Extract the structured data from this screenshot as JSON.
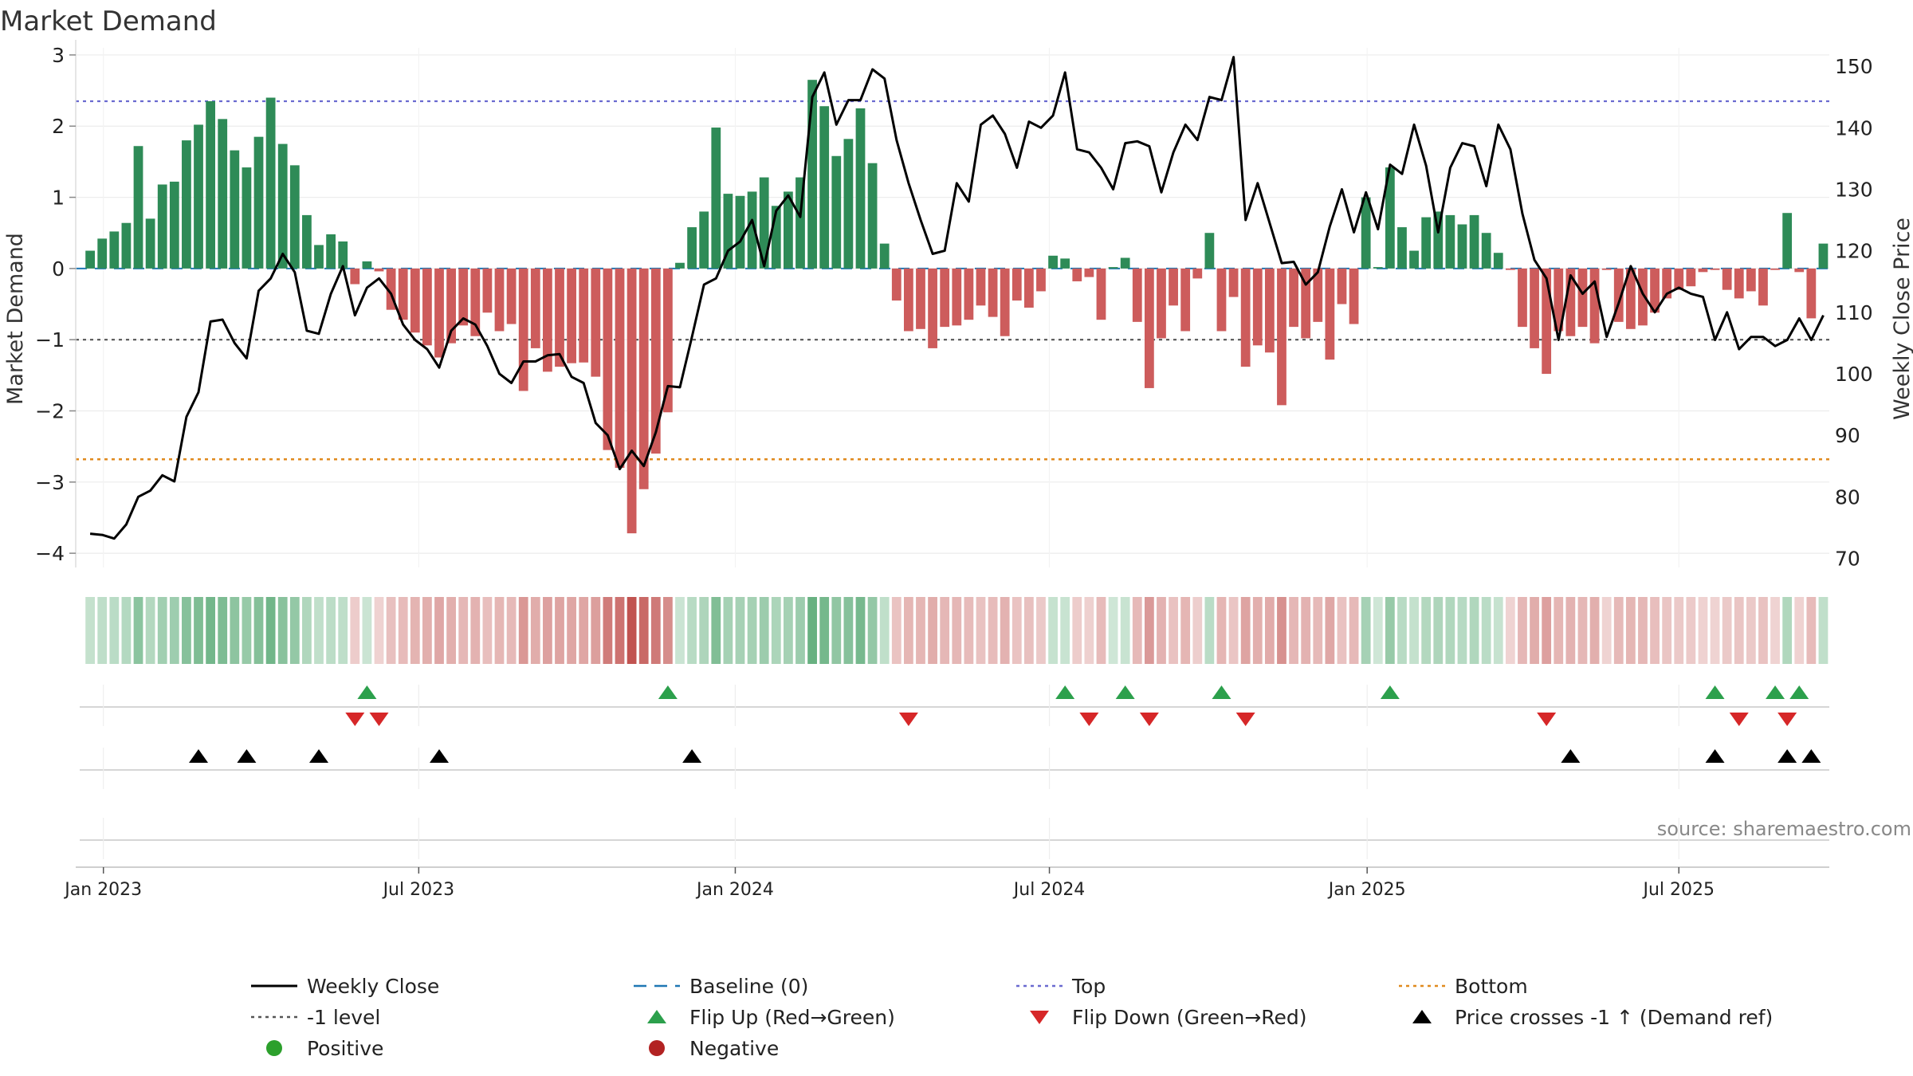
{
  "chart_data": {
    "type": "bar",
    "title": "Market Demand",
    "source": "source: sharemaestro.com",
    "ylabel_left": "Market Demand",
    "ylabel_right": "Weekly Close Price",
    "ylim_left": [
      -4.2,
      3.1
    ],
    "ylim_right": [
      68.5,
      153
    ],
    "yticks_left": [
      3,
      2,
      1,
      0,
      -1,
      -2,
      -3,
      -4
    ],
    "yticks_left_labels": [
      "3",
      "2",
      "1",
      "0",
      "−1",
      "−2",
      "−3",
      "−4"
    ],
    "yticks_right": [
      150,
      140,
      130,
      120,
      110,
      100,
      90,
      80,
      70
    ],
    "yticks_right_labels": [
      "150",
      "140",
      "130",
      "120",
      "110",
      "100",
      "90",
      "80",
      "70"
    ],
    "x_week_range": [
      -1.2,
      144.5
    ],
    "xticks": [
      {
        "label": "Jan 2023",
        "week": 1.1
      },
      {
        "label": "Jul 2023",
        "week": 27.3
      },
      {
        "label": "Jan 2024",
        "week": 53.6
      },
      {
        "label": "Jul 2024",
        "week": 79.7
      },
      {
        "label": "Jan 2025",
        "week": 106.1
      },
      {
        "label": "Jul 2025",
        "week": 132.0
      }
    ],
    "reference_lines": {
      "top": 2.35,
      "bottom": -2.68,
      "minus_one": -1.0,
      "baseline": 0
    },
    "demand_values": [
      0.25,
      0.42,
      0.52,
      0.64,
      1.72,
      0.7,
      1.18,
      1.22,
      1.8,
      2.02,
      2.35,
      2.1,
      1.66,
      1.42,
      1.85,
      2.4,
      1.75,
      1.45,
      0.75,
      0.33,
      0.48,
      0.38,
      -0.22,
      0.1,
      -0.04,
      -0.58,
      -0.72,
      -0.9,
      -1.08,
      -1.25,
      -1.05,
      -0.8,
      -0.95,
      -0.62,
      -0.88,
      -0.78,
      -1.72,
      -1.12,
      -1.45,
      -1.38,
      -1.33,
      -1.32,
      -1.52,
      -2.55,
      -2.8,
      -3.72,
      -3.1,
      -2.6,
      -2.02,
      0.08,
      0.58,
      0.8,
      1.98,
      1.05,
      1.02,
      1.08,
      1.28,
      0.88,
      1.08,
      1.28,
      2.65,
      2.28,
      1.58,
      1.82,
      2.25,
      1.48,
      0.35,
      -0.45,
      -0.88,
      -0.85,
      -1.12,
      -0.82,
      -0.8,
      -0.72,
      -0.52,
      -0.68,
      -0.95,
      -0.45,
      -0.55,
      -0.32,
      0.18,
      0.14,
      -0.18,
      -0.12,
      -0.72,
      0.02,
      0.15,
      -0.75,
      -1.68,
      -0.98,
      -0.52,
      -0.88,
      -0.14,
      0.5,
      -0.88,
      -0.4,
      -1.38,
      -1.08,
      -1.18,
      -1.92,
      -0.82,
      -0.98,
      -0.75,
      -1.28,
      -0.5,
      -0.78,
      1.0,
      0.02,
      1.42,
      0.58,
      0.25,
      0.72,
      0.8,
      0.75,
      0.62,
      0.75,
      0.5,
      0.22,
      -0.02,
      -0.82,
      -1.12,
      -1.48,
      -0.88,
      -0.95,
      -0.82,
      -1.05,
      -0.02,
      -0.75,
      -0.85,
      -0.8,
      -0.62,
      -0.42,
      -0.3,
      -0.25,
      -0.05,
      -0.02,
      -0.3,
      -0.42,
      -0.32,
      -0.52,
      -0.02,
      0.78,
      -0.05,
      -0.7,
      0.35
    ],
    "close_values": [
      74,
      73.8,
      73.2,
      75.5,
      80,
      81,
      83.5,
      82.5,
      93,
      97,
      108.5,
      108.8,
      105,
      102.5,
      113.5,
      115.5,
      119.5,
      116.5,
      107,
      106.5,
      113,
      117.5,
      109.5,
      114,
      115.5,
      113,
      108,
      105.5,
      104,
      101,
      107,
      109,
      108,
      104.5,
      100,
      98.5,
      102,
      102,
      103,
      103.2,
      99.5,
      98.5,
      92,
      90,
      84.5,
      87.5,
      85,
      90.5,
      98,
      97.8,
      106,
      114.5,
      115.5,
      120,
      121.5,
      125,
      117.5,
      126.5,
      129,
      125.5,
      145,
      149,
      140.5,
      144.5,
      144.5,
      149.5,
      148,
      138,
      131,
      125,
      119.5,
      120,
      131,
      128,
      140.5,
      142,
      139,
      133.5,
      141,
      140,
      142,
      149,
      136.5,
      136,
      133.5,
      130,
      137.5,
      137.8,
      137,
      129.5,
      136,
      140.5,
      138,
      145,
      144.5,
      151.5,
      125,
      131,
      124.5,
      118,
      118.2,
      114.5,
      116.5,
      124,
      130,
      123,
      129.5,
      123.5,
      134,
      132.5,
      140.5,
      133.8,
      123,
      133.5,
      137.5,
      137,
      130.5,
      140.5,
      136.5,
      126,
      118.5,
      115.5,
      105.5,
      116,
      113,
      115,
      106,
      111.5,
      117.5,
      113,
      110,
      113,
      114,
      113,
      112.5,
      105.5,
      110,
      104,
      106,
      106,
      104.5,
      105.5,
      109,
      105.5,
      109.5
    ],
    "flip_up_weeks": [
      23,
      48,
      81,
      86,
      94,
      108,
      135,
      140,
      142
    ],
    "flip_down_weeks": [
      22,
      24,
      68,
      83,
      88,
      96,
      121,
      137,
      141
    ],
    "price_cross_weeks": [
      9,
      13,
      19,
      29,
      50,
      123,
      135,
      141,
      143
    ],
    "legend": [
      {
        "label": "Weekly Close",
        "marker": "solid-line",
        "color": "#000000"
      },
      {
        "label": "Baseline (0)",
        "marker": "dash-line",
        "color": "#1f77b4"
      },
      {
        "label": "Top",
        "marker": "dot-line",
        "color": "#6a6ad0"
      },
      {
        "label": "Bottom",
        "marker": "dot-line",
        "color": "#e08a1e"
      },
      {
        "label": "-1 level",
        "marker": "dot-line",
        "color": "#555555"
      },
      {
        "label": "Flip Up (Red→Green)",
        "marker": "triangle-up",
        "color": "#2ca04c"
      },
      {
        "label": "Flip Down (Green→Red)",
        "marker": "triangle-down",
        "color": "#d62728"
      },
      {
        "label": "Price crosses -1 ↑ (Demand ref)",
        "marker": "triangle-up",
        "color": "#000000"
      },
      {
        "label": "Positive",
        "marker": "circle",
        "color": "#2ca02c"
      },
      {
        "label": "Negative",
        "marker": "circle",
        "color": "#b22222"
      }
    ],
    "colors": {
      "positive_bar": "#2e8b57",
      "negative_bar": "#cd5c5c",
      "close_line": "#000000",
      "heat_positive": "#3a9a5b",
      "heat_negative": "#c0504d",
      "flip_up": "#2ca04c",
      "flip_down": "#d62728",
      "cross_marker": "#000000"
    }
  }
}
